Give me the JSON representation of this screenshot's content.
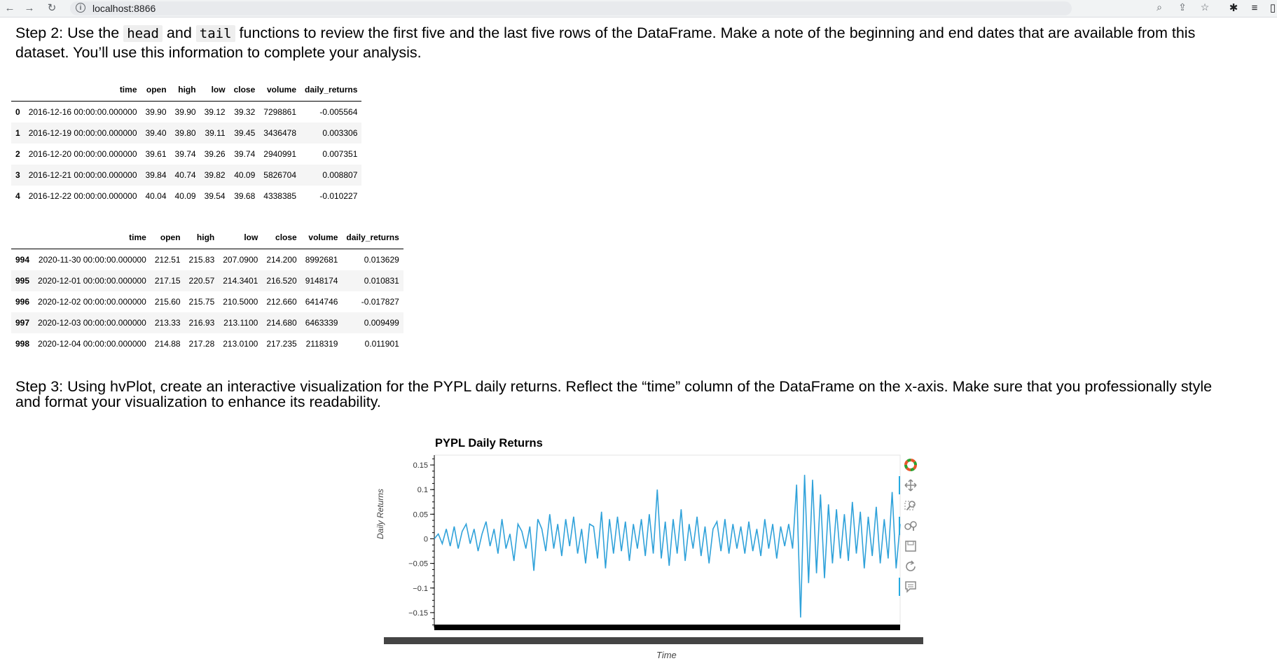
{
  "browser": {
    "url": "localhost:8866"
  },
  "step2": {
    "text_before_head": "Step 2: Use the ",
    "code_head": "head",
    "text_and": " and ",
    "code_tail": "tail",
    "text_rest_line1": " functions to review the first five and the last five rows of the DataFrame. Make a note of the beginning and end dates that are available from this",
    "text_line2": "dataset. You’ll use this information to complete your analysis."
  },
  "head_table": {
    "columns": [
      "time",
      "open",
      "high",
      "low",
      "close",
      "volume",
      "daily_returns"
    ],
    "rows": [
      {
        "index": "0",
        "time": "2016-12-16 00:00:00.000000",
        "open": "39.90",
        "high": "39.90",
        "low": "39.12",
        "close": "39.32",
        "volume": "7298861",
        "daily_returns": "-0.005564"
      },
      {
        "index": "1",
        "time": "2016-12-19 00:00:00.000000",
        "open": "39.40",
        "high": "39.80",
        "low": "39.11",
        "close": "39.45",
        "volume": "3436478",
        "daily_returns": "0.003306"
      },
      {
        "index": "2",
        "time": "2016-12-20 00:00:00.000000",
        "open": "39.61",
        "high": "39.74",
        "low": "39.26",
        "close": "39.74",
        "volume": "2940991",
        "daily_returns": "0.007351"
      },
      {
        "index": "3",
        "time": "2016-12-21 00:00:00.000000",
        "open": "39.84",
        "high": "40.74",
        "low": "39.82",
        "close": "40.09",
        "volume": "5826704",
        "daily_returns": "0.008807"
      },
      {
        "index": "4",
        "time": "2016-12-22 00:00:00.000000",
        "open": "40.04",
        "high": "40.09",
        "low": "39.54",
        "close": "39.68",
        "volume": "4338385",
        "daily_returns": "-0.010227"
      }
    ]
  },
  "tail_table": {
    "columns": [
      "time",
      "open",
      "high",
      "low",
      "close",
      "volume",
      "daily_returns"
    ],
    "rows": [
      {
        "index": "994",
        "time": "2020-11-30 00:00:00.000000",
        "open": "212.51",
        "high": "215.83",
        "low": "207.0900",
        "close": "214.200",
        "volume": "8992681",
        "daily_returns": "0.013629"
      },
      {
        "index": "995",
        "time": "2020-12-01 00:00:00.000000",
        "open": "217.15",
        "high": "220.57",
        "low": "214.3401",
        "close": "216.520",
        "volume": "9148174",
        "daily_returns": "0.010831"
      },
      {
        "index": "996",
        "time": "2020-12-02 00:00:00.000000",
        "open": "215.60",
        "high": "215.75",
        "low": "210.5000",
        "close": "212.660",
        "volume": "6414746",
        "daily_returns": "-0.017827"
      },
      {
        "index": "997",
        "time": "2020-12-03 00:00:00.000000",
        "open": "213.33",
        "high": "216.93",
        "low": "213.1100",
        "close": "214.680",
        "volume": "6463339",
        "daily_returns": "0.009499"
      },
      {
        "index": "998",
        "time": "2020-12-04 00:00:00.000000",
        "open": "214.88",
        "high": "217.28",
        "low": "213.0100",
        "close": "217.235",
        "volume": "2118319",
        "daily_returns": "0.011901"
      }
    ]
  },
  "step3": {
    "text_line1": "Step 3: Using hvPlot, create an interactive visualization for the PYPL daily returns. Reflect the “time” column of the DataFrame on the x-axis. Make sure that you professionally style",
    "text_line2": "and format your visualization to enhance its readability."
  },
  "chart_data": {
    "type": "line",
    "title": "PYPL Daily Returns",
    "xlabel": "Time",
    "ylabel": "Daily Returns",
    "ylim": [
      -0.18,
      0.17
    ],
    "yticks": [
      0.15,
      0.1,
      0.05,
      0,
      -0.05,
      -0.1,
      -0.15
    ],
    "ytick_labels": [
      "0.15",
      "0.1",
      "0.05",
      "0",
      "−0.05",
      "−0.1",
      "−0.15"
    ],
    "series_color": "#30a2da",
    "grid": false,
    "series": [
      {
        "values": [
          0.0,
          0.01,
          -0.01,
          0.02,
          -0.015,
          0.025,
          -0.02,
          0.015,
          0.03,
          -0.01,
          0.02,
          -0.025,
          0.01,
          0.035,
          -0.015,
          0.02,
          -0.03,
          0.04,
          -0.02,
          0.01,
          -0.045,
          0.03,
          0.015,
          -0.02,
          0.025,
          -0.065,
          0.04,
          0.02,
          -0.025,
          0.05,
          -0.02,
          0.03,
          -0.035,
          0.04,
          -0.015,
          0.045,
          -0.03,
          0.02,
          -0.05,
          0.03,
          0.025,
          -0.04,
          0.055,
          -0.06,
          0.04,
          -0.03,
          0.045,
          -0.025,
          0.035,
          -0.045,
          0.03,
          -0.02,
          0.04,
          -0.035,
          0.05,
          -0.03,
          0.1,
          -0.04,
          0.035,
          -0.055,
          0.04,
          -0.03,
          0.06,
          -0.045,
          0.03,
          -0.02,
          0.045,
          -0.035,
          0.025,
          -0.05,
          0.02,
          0.035,
          -0.025,
          0.04,
          -0.03,
          0.03,
          -0.02,
          0.025,
          -0.03,
          0.035,
          -0.025,
          0.02,
          -0.035,
          0.04,
          -0.02,
          0.03,
          -0.04,
          0.025,
          -0.015,
          0.03,
          -0.02,
          0.11,
          -0.16,
          0.13,
          -0.09,
          0.12,
          -0.07,
          0.09,
          -0.08,
          0.07,
          -0.05,
          0.06,
          -0.04,
          0.05,
          -0.045,
          0.075,
          -0.03,
          0.055,
          -0.06,
          0.045,
          -0.035,
          0.065,
          -0.05,
          0.04,
          -0.04,
          0.095,
          -0.06,
          0.03
        ]
      }
    ]
  },
  "chart_toolbar": {
    "tools": [
      "bokeh-logo-icon",
      "pan-icon",
      "box-zoom-icon",
      "wheel-zoom-icon",
      "save-icon",
      "reset-icon",
      "hover-icon"
    ]
  }
}
